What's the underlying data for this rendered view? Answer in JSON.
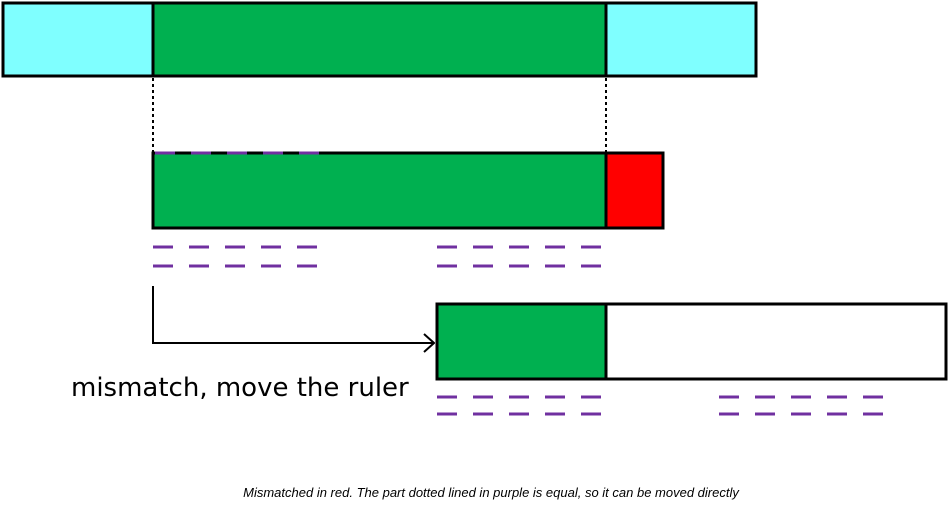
{
  "colors": {
    "text_segment": "#7FFFFF",
    "matched": "#00B050",
    "mismatched": "#FF0000",
    "empty": "#FFFFFF",
    "equal_marker": "#7030A0",
    "outline": "#000000"
  },
  "labels": {
    "action": "mismatch, move the ruler",
    "caption": "Mismatched in red. The part dotted lined in  purple is equal, so it can be moved directly"
  }
}
